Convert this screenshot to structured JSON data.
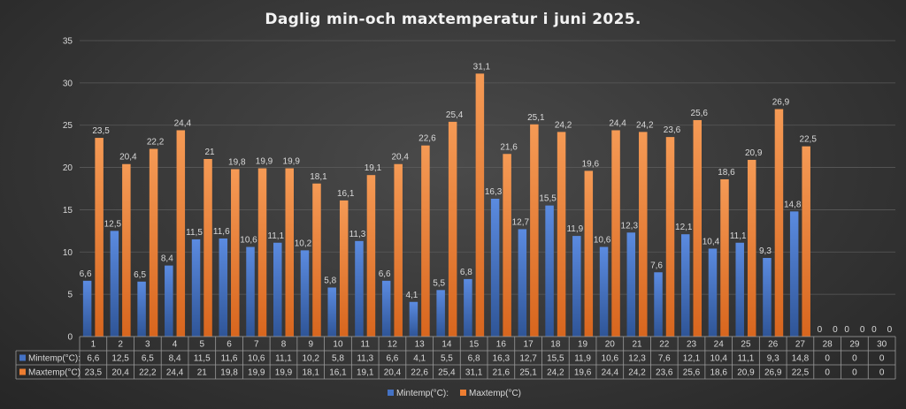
{
  "chart_data": {
    "type": "bar",
    "title": "Daglig min-och maxtemperatur i juni 2025.",
    "xlabel": "",
    "ylabel": "",
    "ylim": [
      0,
      35
    ],
    "yticks": [
      0,
      5,
      10,
      15,
      20,
      25,
      30,
      35
    ],
    "grid": true,
    "legend_position": "bottom",
    "data_table": true,
    "categories": [
      "1",
      "2",
      "3",
      "4",
      "5",
      "6",
      "7",
      "8",
      "9",
      "10",
      "11",
      "12",
      "13",
      "14",
      "15",
      "16",
      "17",
      "18",
      "19",
      "20",
      "21",
      "22",
      "23",
      "24",
      "25",
      "26",
      "27",
      "28",
      "29",
      "30"
    ],
    "series": [
      {
        "name": "Mintemp(°C):",
        "color": "#4472c4",
        "values": [
          6.6,
          12.5,
          6.5,
          8.4,
          11.5,
          11.6,
          10.6,
          11.1,
          10.2,
          5.8,
          11.3,
          6.6,
          4.1,
          5.5,
          6.8,
          16.3,
          12.7,
          15.5,
          11.9,
          10.6,
          12.3,
          7.6,
          12.1,
          10.4,
          11.1,
          9.3,
          14.8,
          0,
          0,
          0
        ],
        "labels": [
          "6,6",
          "12,5",
          "6,5",
          "8,4",
          "11,5",
          "11,6",
          "10,6",
          "11,1",
          "10,2",
          "5,8",
          "11,3",
          "6,6",
          "4,1",
          "5,5",
          "6,8",
          "16,3",
          "12,7",
          "15,5",
          "11,9",
          "10,6",
          "12,3",
          "7,6",
          "12,1",
          "10,4",
          "11,1",
          "9,3",
          "14,8",
          "0",
          "0",
          "0"
        ]
      },
      {
        "name": "Maxtemp(°C)",
        "color": "#ed7d31",
        "values": [
          23.5,
          20.4,
          22.2,
          24.4,
          21,
          19.8,
          19.9,
          19.9,
          18.1,
          16.1,
          19.1,
          20.4,
          22.6,
          25.4,
          31.1,
          21.6,
          25.1,
          24.2,
          19.6,
          24.4,
          24.2,
          23.6,
          25.6,
          18.6,
          20.9,
          26.9,
          22.5,
          0,
          0,
          0
        ],
        "labels": [
          "23,5",
          "20,4",
          "22,2",
          "24,4",
          "21",
          "19,8",
          "19,9",
          "19,9",
          "18,1",
          "16,1",
          "19,1",
          "20,4",
          "22,6",
          "25,4",
          "31,1",
          "21,6",
          "25,1",
          "24,2",
          "19,6",
          "24,4",
          "24,2",
          "23,6",
          "25,6",
          "18,6",
          "20,9",
          "26,9",
          "22,5",
          "0",
          "0",
          "0"
        ]
      }
    ]
  }
}
